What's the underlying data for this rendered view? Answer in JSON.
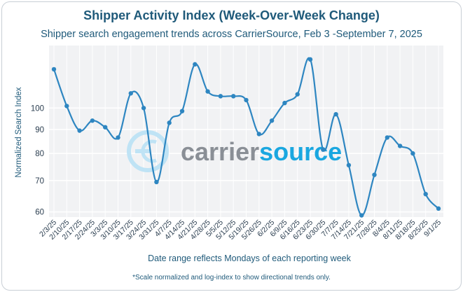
{
  "header": {
    "title": "Shipper Activity Index (Week-Over-Week Change)",
    "subtitle": "Shipper search engagement trends across CarrierSource, Feb 3 -September 7, 2025"
  },
  "footnote": "*Scale normalized and log-index to show directional trends only.",
  "watermark": {
    "text_a": "carrier",
    "text_b": "source",
    "color_a": "#8a8f96",
    "color_b": "#1aa7e0",
    "icon": "carriersource-logo-icon"
  },
  "colors": {
    "line": "#2e86c1",
    "text": "#1f5a7a",
    "plot_bg": "#f1f2f4",
    "grid": "#ffffff"
  },
  "chart_data": {
    "type": "line",
    "title": "Shipper Activity Index (Week-Over-Week Change)",
    "subtitle": "Shipper search engagement trends across CarrierSource, Feb 3 -September 7, 2025",
    "xlabel": "Date range reflects Mondays of each reporting week",
    "ylabel": "Normalized Search Index",
    "y_scale": "log",
    "ylim": [
      58.5,
      136
    ],
    "yticks": [
      60,
      70,
      80,
      90,
      100
    ],
    "grid": true,
    "legend": "none",
    "categories": [
      "2/3/25",
      "2/10/25",
      "2/17/25",
      "2/24/25",
      "3/3/25",
      "3/10/25",
      "3/17/25",
      "3/24/25",
      "3/31/25",
      "4/7/25",
      "4/14/25",
      "4/21/25",
      "4/28/25",
      "5/5/25",
      "5/12/25",
      "5/19/25",
      "5/26/25",
      "6/2/25",
      "6/9/25",
      "6/16/25",
      "6/23/25",
      "6/30/25",
      "7/7/25",
      "7/14/25",
      "7/21/25",
      "7/28/25",
      "8/4/25",
      "8/11/25",
      "8/18/25",
      "8/25/25",
      "9/1/25"
    ],
    "series": [
      {
        "values": [
          121,
          101,
          89.5,
          94,
          91,
          86.5,
          107.5,
          100,
          69.5,
          93,
          98.5,
          124,
          108.5,
          106,
          106,
          104,
          88,
          94,
          102.5,
          107,
          127,
          81.5,
          97,
          75.5,
          59,
          72,
          86.5,
          83,
          80,
          65.5,
          61
        ]
      }
    ]
  }
}
